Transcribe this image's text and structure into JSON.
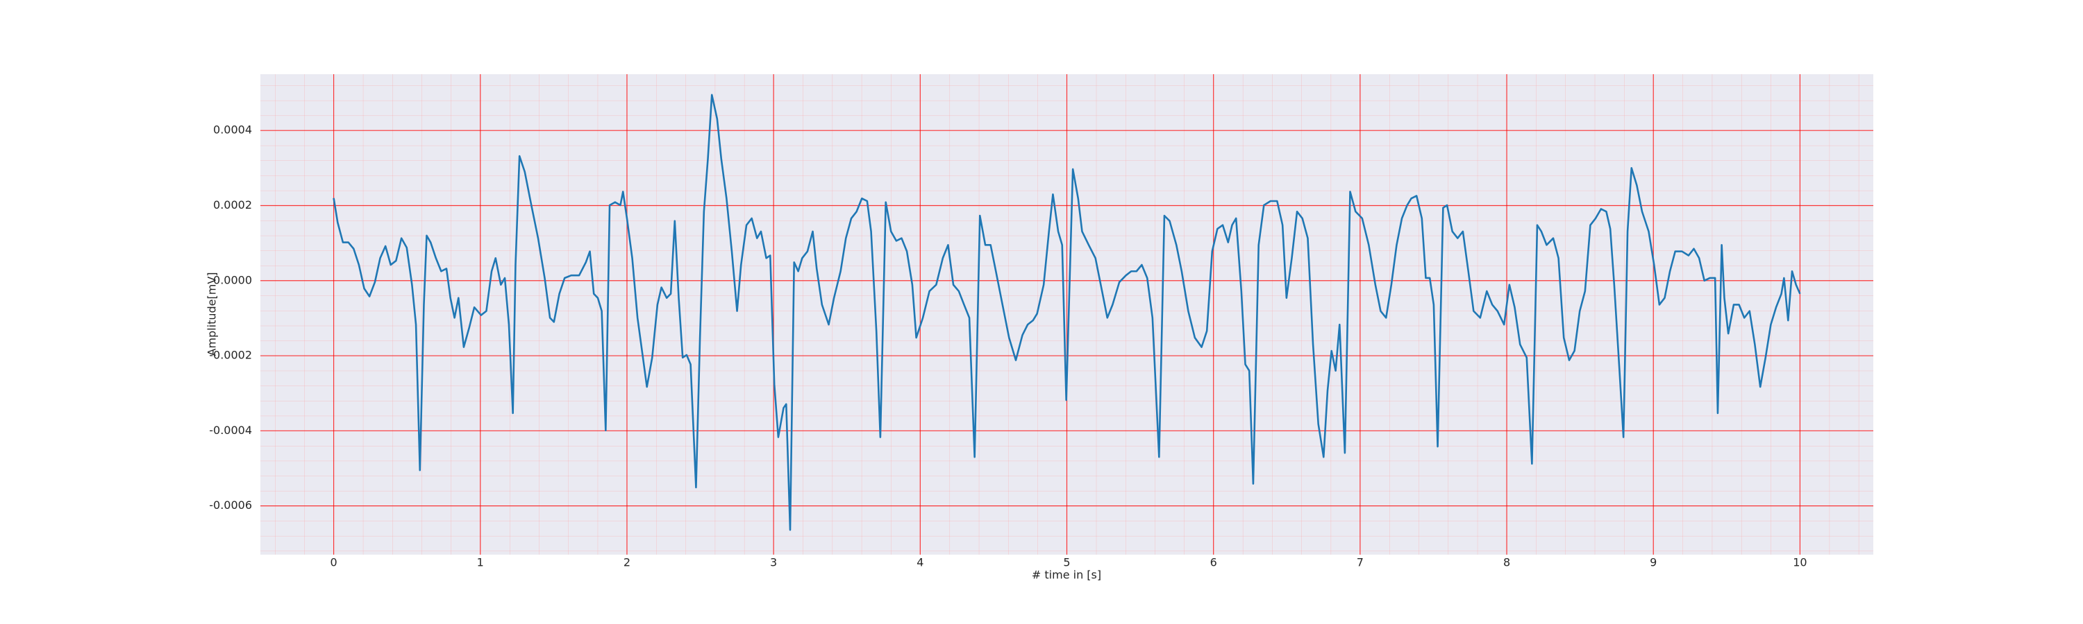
{
  "chart_data": {
    "type": "line",
    "xlabel": "# time in [s]",
    "ylabel": "Amplitude[mV]",
    "color": "#1f77b4",
    "grid": true,
    "grid_color": "#ff0000",
    "background": "#eaeaf2",
    "xlim": [
      -0.5,
      10.5
    ],
    "ylim": [
      -0.00073,
      0.00055
    ],
    "xticks": [
      0,
      1,
      2,
      3,
      4,
      5,
      6,
      7,
      8,
      9,
      10
    ],
    "yticks": [
      -0.0006,
      -0.0004,
      -0.0002,
      {
        "value": 0,
        "label": "0.0000"
      },
      0.0002,
      0.0004
    ],
    "x": [
      0,
      0.027,
      0.063,
      0.1,
      0.136,
      0.172,
      0.208,
      0.244,
      0.281,
      0.317,
      0.353,
      0.389,
      0.425,
      0.462,
      0.498,
      0.534,
      0.561,
      0.588,
      0.615,
      0.634,
      0.661,
      0.697,
      0.733,
      0.769,
      0.796,
      0.824,
      0.851,
      0.887,
      0.923,
      0.959,
      1.005,
      1.041,
      1.077,
      1.104,
      1.14,
      1.167,
      1.195,
      1.222,
      1.24,
      1.267,
      1.303,
      1.348,
      1.394,
      1.439,
      1.475,
      1.502,
      1.539,
      1.575,
      1.62,
      1.674,
      1.72,
      1.747,
      1.774,
      1.801,
      1.828,
      1.855,
      1.882,
      1.919,
      1.955,
      1.973,
      2.0,
      2.036,
      2.072,
      2.109,
      2.136,
      2.172,
      2.208,
      2.235,
      2.271,
      2.299,
      2.326,
      2.353,
      2.38,
      2.407,
      2.434,
      2.471,
      2.498,
      2.525,
      2.552,
      2.579,
      2.615,
      2.643,
      2.679,
      2.715,
      2.751,
      2.778,
      2.815,
      2.851,
      2.887,
      2.914,
      2.95,
      2.977,
      3.005,
      3.032,
      3.068,
      3.086,
      3.113,
      3.14,
      3.168,
      3.195,
      3.231,
      3.267,
      3.294,
      3.33,
      3.376,
      3.412,
      3.457,
      3.493,
      3.53,
      3.566,
      3.602,
      3.638,
      3.665,
      3.701,
      3.728,
      3.765,
      3.801,
      3.837,
      3.873,
      3.909,
      3.946,
      3.973,
      4.018,
      4.063,
      4.109,
      4.154,
      4.19,
      4.226,
      4.263,
      4.299,
      4.335,
      4.371,
      4.407,
      4.444,
      4.48,
      4.516,
      4.561,
      4.606,
      4.652,
      4.697,
      4.733,
      4.769,
      4.797,
      4.842,
      4.878,
      4.905,
      4.941,
      4.968,
      4.996,
      5.041,
      5.077,
      5.104,
      5.149,
      5.195,
      5.24,
      5.276,
      5.312,
      5.358,
      5.403,
      5.439,
      5.475,
      5.511,
      5.548,
      5.584,
      5.629,
      5.665,
      5.701,
      5.747,
      5.783,
      5.828,
      5.873,
      5.919,
      5.955,
      5.991,
      6.027,
      6.063,
      6.1,
      6.127,
      6.154,
      6.19,
      6.217,
      6.244,
      6.271,
      6.308,
      6.344,
      6.389,
      6.434,
      6.471,
      6.498,
      6.534,
      6.57,
      6.606,
      6.643,
      6.679,
      6.715,
      6.751,
      6.778,
      6.805,
      6.833,
      6.86,
      6.896,
      6.932,
      6.969,
      7.014,
      7.059,
      7.104,
      7.14,
      7.177,
      7.213,
      7.249,
      7.285,
      7.321,
      7.349,
      7.385,
      7.421,
      7.448,
      7.475,
      7.502,
      7.529,
      7.566,
      7.593,
      7.629,
      7.665,
      7.701,
      7.738,
      7.774,
      7.819,
      7.864,
      7.901,
      7.937,
      7.982,
      8.018,
      8.054,
      8.091,
      8.136,
      8.172,
      8.208,
      8.236,
      8.272,
      8.317,
      8.353,
      8.389,
      8.426,
      8.462,
      8.498,
      8.534,
      8.57,
      8.606,
      8.643,
      8.679,
      8.706,
      8.733,
      8.769,
      8.796,
      8.824,
      8.851,
      8.887,
      8.923,
      8.968,
      9.005,
      9.041,
      9.077,
      9.113,
      9.149,
      9.195,
      9.24,
      9.276,
      9.312,
      9.348,
      9.385,
      9.421,
      9.439,
      9.466,
      9.484,
      9.511,
      9.548,
      9.584,
      9.62,
      9.656,
      9.692,
      9.729,
      9.765,
      9.801,
      9.837,
      9.873,
      9.891,
      9.919,
      9.946,
      9.973,
      10.0
    ],
    "values": [
      0.00022,
      0.000155,
      0.000102,
      0.000102,
      8.5e-05,
      4.2e-05,
      -2.1e-05,
      -4.2e-05,
      -4e-06,
      6e-05,
      9.2e-05,
      4.2e-05,
      5.3e-05,
      0.000113,
      8.8e-05,
      -1.1e-05,
      -0.000117,
      -0.000505,
      -6.4e-05,
      0.00012,
      0.000102,
      6e-05,
      2.5e-05,
      3.2e-05,
      -4.6e-05,
      -9.9e-05,
      -4.6e-05,
      -0.000177,
      -0.000127,
      -7.1e-05,
      -9.2e-05,
      -8.1e-05,
      2.5e-05,
      6e-05,
      -1.1e-05,
      7e-06,
      -0.000117,
      -0.000353,
      4.2e-05,
      0.000332,
      0.00029,
      0.000201,
      0.000113,
      7e-06,
      -9.9e-05,
      -0.00011,
      -3.5e-05,
      7e-06,
      1.4e-05,
      1.4e-05,
      4.9e-05,
      7.8e-05,
      -3.5e-05,
      -4.6e-05,
      -8.1e-05,
      -0.000399,
      0.000201,
      0.000209,
      0.000201,
      0.000237,
      0.000166,
      6e-05,
      -9.9e-05,
      -0.000205,
      -0.000283,
      -0.000205,
      -6.4e-05,
      -1.8e-05,
      -4.6e-05,
      -3.5e-05,
      0.000159,
      -4.6e-05,
      -0.000205,
      -0.000198,
      -0.000223,
      -0.000551,
      -0.000152,
      0.000184,
      0.000325,
      0.000495,
      0.000431,
      0.000325,
      0.000219,
      7.8e-05,
      -8.1e-05,
      4.2e-05,
      0.000148,
      0.000166,
      0.000113,
      0.000131,
      6e-05,
      6.7e-05,
      -0.000276,
      -0.000417,
      -0.000339,
      -0.000329,
      -0.000664,
      4.9e-05,
      2.5e-05,
      6e-05,
      7.8e-05,
      0.000131,
      3.2e-05,
      -6.4e-05,
      -0.000117,
      -4.6e-05,
      2.5e-05,
      0.000113,
      0.000166,
      0.000184,
      0.000219,
      0.000212,
      0.000131,
      -0.000134,
      -0.000417,
      0.000209,
      0.000131,
      0.000106,
      0.000113,
      7.8e-05,
      -1.1e-05,
      -0.000152,
      -9.9e-05,
      -2.8e-05,
      -1.1e-05,
      6e-05,
      9.5e-05,
      -1.1e-05,
      -2.8e-05,
      -6.4e-05,
      -9.9e-05,
      -0.00047,
      0.000173,
      9.5e-05,
      9.5e-05,
      2.5e-05,
      -6.4e-05,
      -0.000152,
      -0.000212,
      -0.000145,
      -0.000117,
      -0.000106,
      -8.8e-05,
      -1.1e-05,
      0.000131,
      0.00023,
      0.000131,
      9.5e-05,
      -0.000318,
      0.000297,
      0.000219,
      0.000131,
      9.5e-05,
      6e-05,
      -2.8e-05,
      -9.9e-05,
      -6.4e-05,
      -4e-06,
      1.4e-05,
      2.5e-05,
      2.5e-05,
      4.2e-05,
      7e-06,
      -9.9e-05,
      -0.00047,
      0.000173,
      0.000159,
      9.5e-05,
      2.5e-05,
      -8.1e-05,
      -0.000152,
      -0.000177,
      -0.000134,
      7.8e-05,
      0.000138,
      0.000148,
      0.000102,
      0.000148,
      0.000166,
      -2.8e-05,
      -0.000223,
      -0.00024,
      -0.000541,
      9.5e-05,
      0.000201,
      0.000212,
      0.000212,
      0.000148,
      -4.6e-05,
      6e-05,
      0.000184,
      0.000166,
      0.000113,
      -0.00017,
      -0.000382,
      -0.00047,
      -0.000293,
      -0.000187,
      -0.00024,
      -0.000117,
      -0.000459,
      0.000237,
      0.000184,
      0.000166,
      9.5e-05,
      -1.1e-05,
      -8.1e-05,
      -9.9e-05,
      -1.1e-05,
      9.5e-05,
      0.000166,
      0.000201,
      0.000219,
      0.000226,
      0.000166,
      7e-06,
      7e-06,
      -6.4e-05,
      -0.000442,
      0.000194,
      0.000201,
      0.000131,
      0.000113,
      0.000131,
      2.5e-05,
      -8.1e-05,
      -9.9e-05,
      -2.8e-05,
      -6.4e-05,
      -8.1e-05,
      -0.000117,
      -1.1e-05,
      -7.1e-05,
      -0.00017,
      -0.000205,
      -0.000488,
      0.000148,
      0.000131,
      9.5e-05,
      0.000113,
      6e-05,
      -0.000152,
      -0.000212,
      -0.000187,
      -8.1e-05,
      -2.8e-05,
      0.000148,
      0.000166,
      0.000191,
      0.000184,
      0.000138,
      -1.1e-05,
      -0.00024,
      -0.000417,
      0.000131,
      0.0003,
      0.000254,
      0.000184,
      0.000131,
      4.2e-05,
      -6.4e-05,
      -4.6e-05,
      2.5e-05,
      7.8e-05,
      7.8e-05,
      6.7e-05,
      8.5e-05,
      6e-05,
      0,
      7e-06,
      7e-06,
      -0.000353,
      9.5e-05,
      -4.6e-05,
      -0.000141,
      -6.4e-05,
      -6.4e-05,
      -9.9e-05,
      -8.1e-05,
      -0.00017,
      -0.000283,
      -0.000205,
      -0.000117,
      -7.1e-05,
      -3.5e-05,
      7e-06,
      -0.000106,
      2.5e-05,
      -1.1e-05,
      -3.5e-05
    ]
  }
}
